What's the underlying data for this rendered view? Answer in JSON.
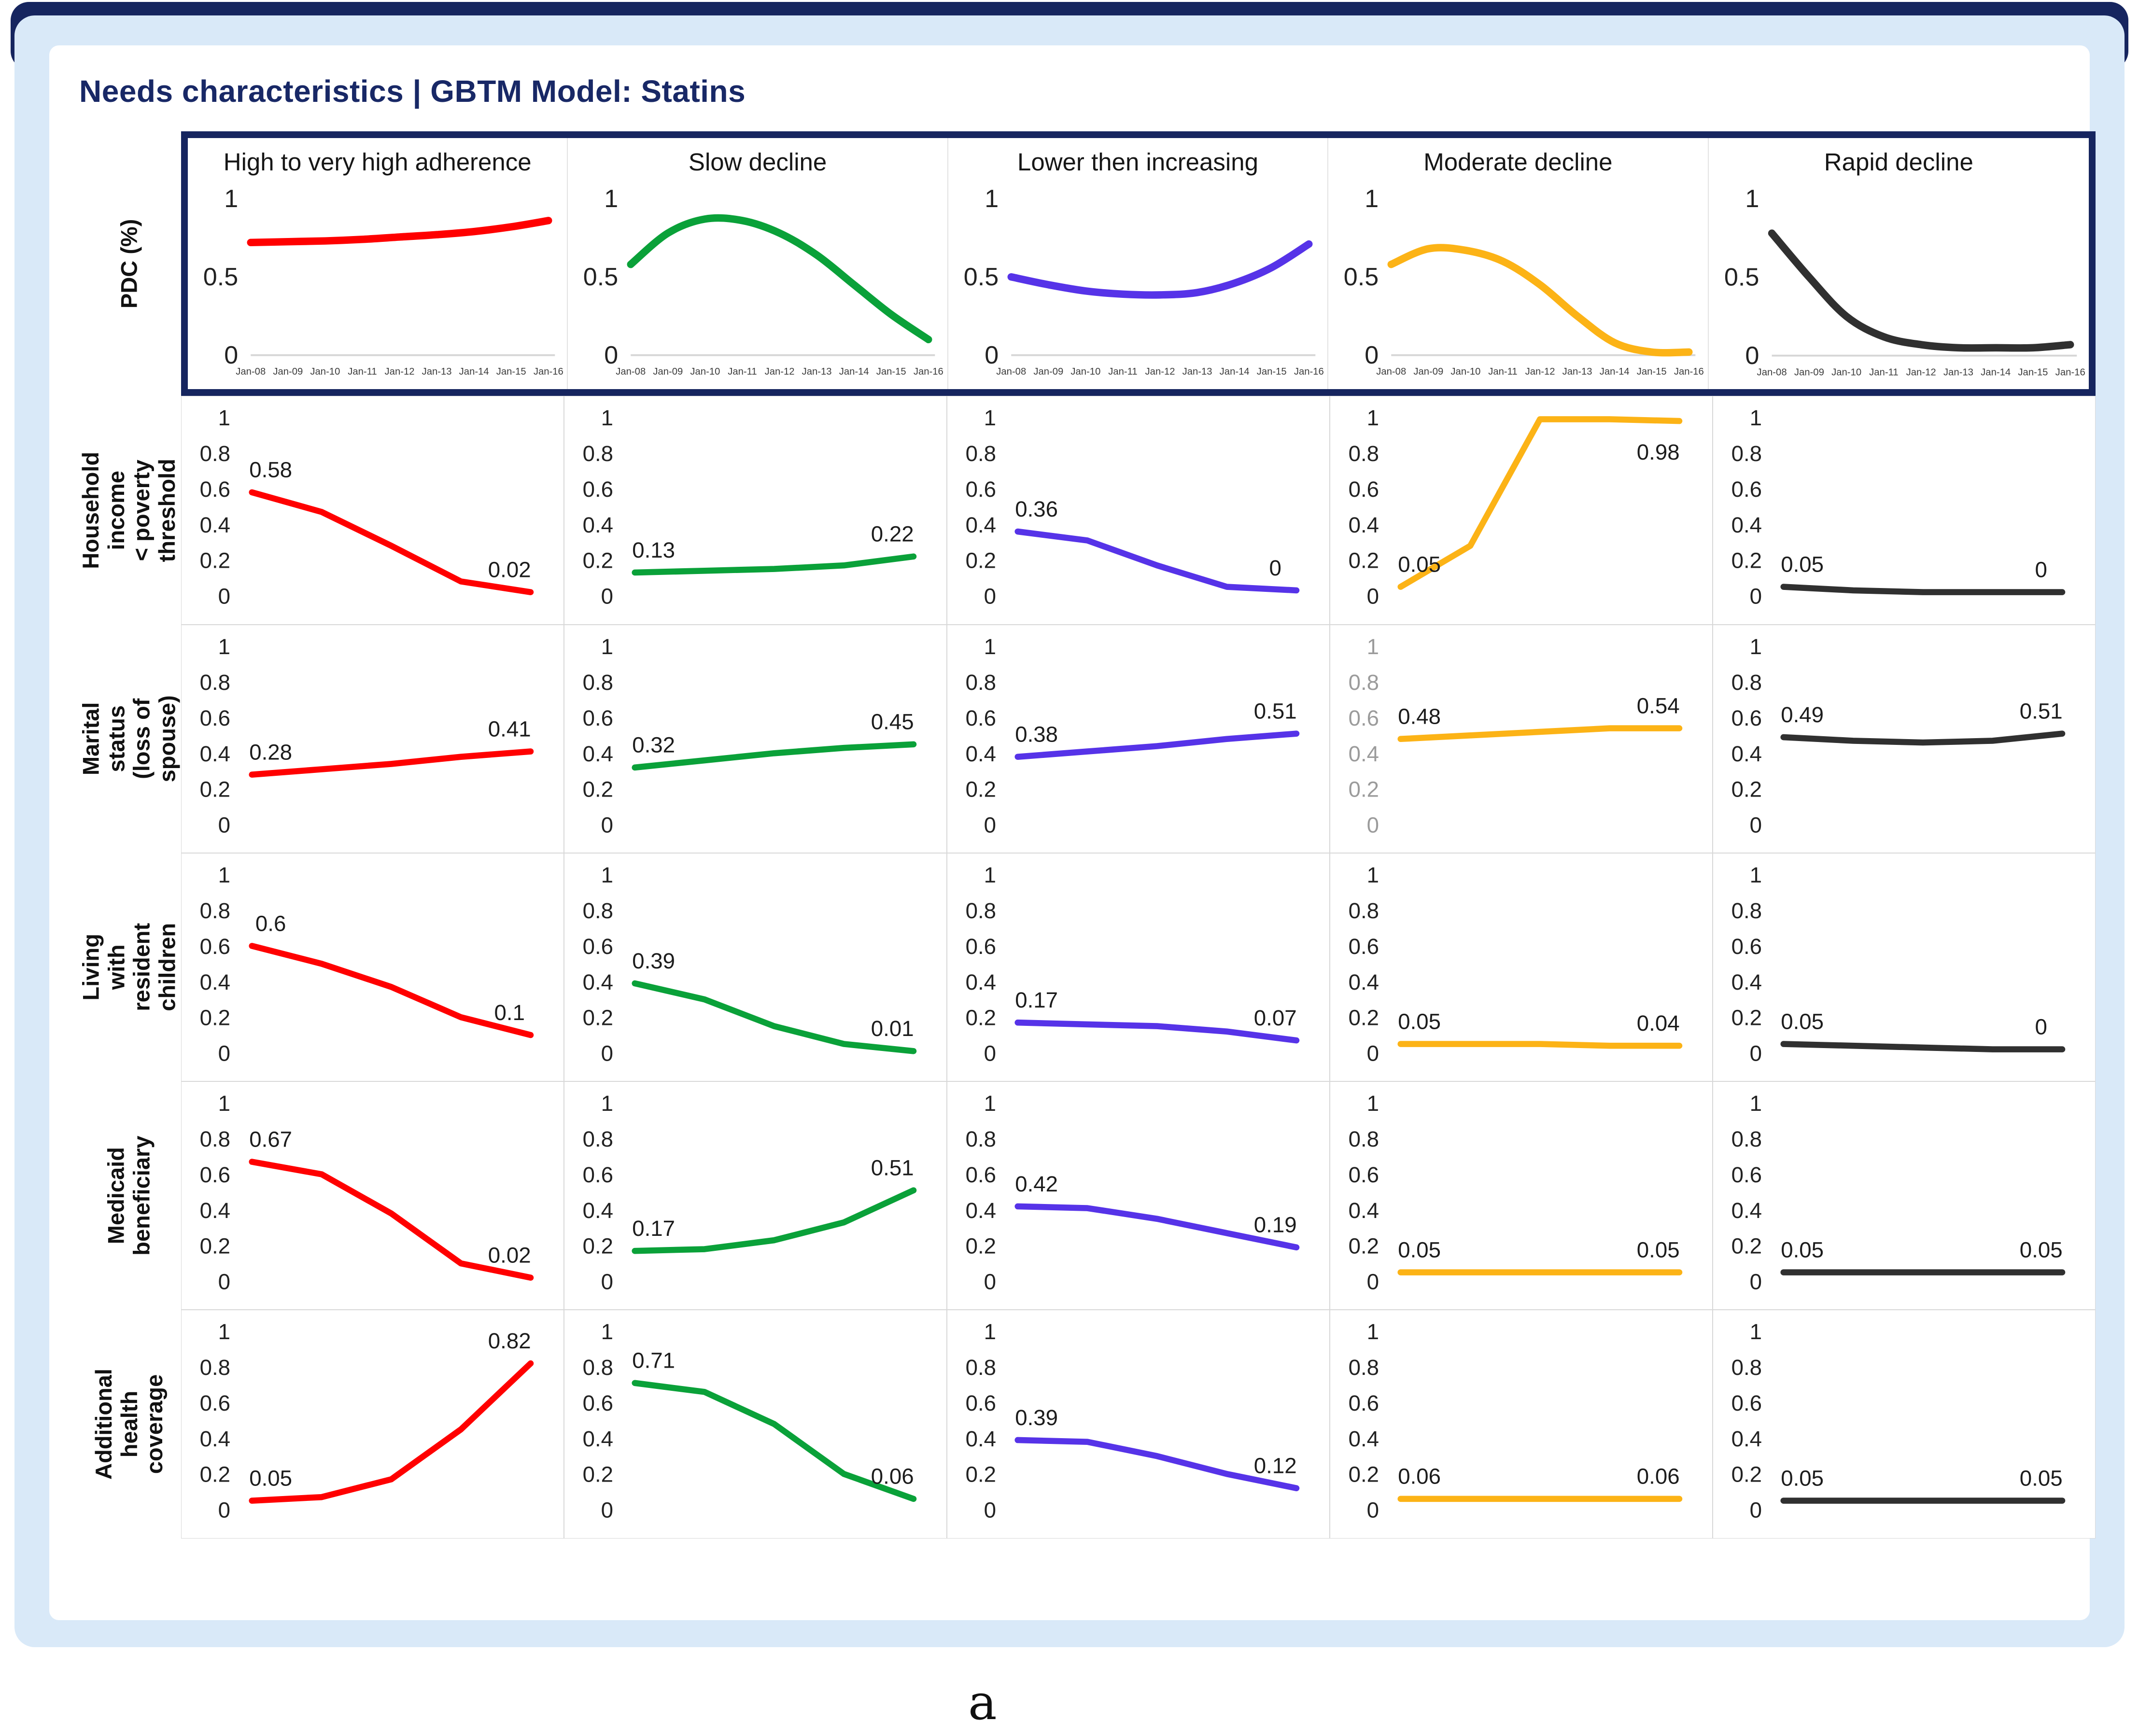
{
  "page": {
    "title": "Needs characteristics | GBTM Model: Statins",
    "figure_label": "a",
    "colors": {
      "navy_border": "#16255f",
      "title_navy": "#182866",
      "card_blue": "#d9e9f8",
      "tick_black": "#222222",
      "tick_gray": "#9b9b9b",
      "baseline_gray": "#d6d6d6",
      "red": "#ff0000",
      "green": "#0aa139",
      "purple": "#5633e8",
      "orange": "#fcb316",
      "black": "#303030"
    }
  },
  "chart_data": {
    "type": "line",
    "title": "Needs characteristics | GBTM Model: Statins",
    "x_labels": [
      "Jan-08",
      "Jan-09",
      "Jan-10",
      "Jan-11",
      "Jan-12",
      "Jan-13",
      "Jan-14",
      "Jan-15",
      "Jan-16"
    ],
    "pdc_axis_ticks": [
      "1",
      "0.5",
      "0"
    ],
    "row_axis_ticks": [
      "1",
      "0.8",
      "0.6",
      "0.4",
      "0.2",
      "0"
    ],
    "ylim": [
      0,
      1
    ],
    "grid": "off",
    "columns": [
      {
        "id": "high",
        "label": "High to very high adherence",
        "color": "#ff0000"
      },
      {
        "id": "slow",
        "label": "Slow decline",
        "color": "#0aa139"
      },
      {
        "id": "lower",
        "label": "Lower then increasing",
        "color": "#5633e8"
      },
      {
        "id": "moderate",
        "label": "Moderate decline",
        "color": "#fcb316"
      },
      {
        "id": "rapid",
        "label": "Rapid decline",
        "color": "#303030"
      }
    ],
    "pdc_row": {
      "label": "PDC (%)",
      "yticks": [
        1,
        0.5,
        0
      ],
      "series": [
        {
          "column": "high",
          "values": [
            0.72,
            0.725,
            0.73,
            0.74,
            0.755,
            0.77,
            0.79,
            0.82,
            0.86
          ]
        },
        {
          "column": "slow",
          "values": [
            0.58,
            0.78,
            0.87,
            0.86,
            0.78,
            0.64,
            0.45,
            0.26,
            0.1
          ]
        },
        {
          "column": "lower",
          "values": [
            0.5,
            0.45,
            0.41,
            0.39,
            0.385,
            0.4,
            0.46,
            0.56,
            0.71
          ]
        },
        {
          "column": "moderate",
          "values": [
            0.58,
            0.68,
            0.67,
            0.6,
            0.45,
            0.25,
            0.08,
            0.02,
            0.02
          ]
        },
        {
          "column": "rapid",
          "values": [
            0.78,
            0.5,
            0.25,
            0.12,
            0.07,
            0.05,
            0.05,
            0.05,
            0.07
          ]
        }
      ]
    },
    "rows": [
      {
        "id": "household_income",
        "label": "Household income\n< poverty threshold",
        "cells": [
          {
            "values": [
              0.58,
              0.47,
              0.28,
              0.08,
              0.02
            ],
            "label_start": "0.58",
            "label_end": "0.02"
          },
          {
            "values": [
              0.13,
              0.14,
              0.15,
              0.17,
              0.22
            ],
            "label_start": "0.13",
            "label_end": "0.22"
          },
          {
            "values": [
              0.36,
              0.31,
              0.17,
              0.05,
              0.03
            ],
            "label_start": "0.36",
            "label_end": "0"
          },
          {
            "values": [
              0.05,
              0.28,
              0.99,
              0.99,
              0.98
            ],
            "label_start": "0.05",
            "label_end": "0.98",
            "label_end_below": true
          },
          {
            "values": [
              0.05,
              0.03,
              0.02,
              0.02,
              0.02
            ],
            "label_start": "0.05",
            "label_end": "0"
          }
        ]
      },
      {
        "id": "marital_status",
        "label": "Marital status\n(loss of spouse)",
        "cells": [
          {
            "values": [
              0.28,
              0.31,
              0.34,
              0.38,
              0.41
            ],
            "label_start": "0.28",
            "label_end": "0.41"
          },
          {
            "values": [
              0.32,
              0.36,
              0.4,
              0.43,
              0.45
            ],
            "label_start": "0.32",
            "label_end": "0.45"
          },
          {
            "values": [
              0.38,
              0.41,
              0.44,
              0.48,
              0.51
            ],
            "label_start": "0.38",
            "label_end": "0.51"
          },
          {
            "values": [
              0.48,
              0.5,
              0.52,
              0.54,
              0.54
            ],
            "label_start": "0.48",
            "label_end": "0.54",
            "gray_ticks": true
          },
          {
            "values": [
              0.49,
              0.47,
              0.46,
              0.47,
              0.51
            ],
            "label_start": "0.49",
            "label_end": "0.51"
          }
        ]
      },
      {
        "id": "living_children",
        "label": "Living with resident\nchildren",
        "cells": [
          {
            "values": [
              0.6,
              0.5,
              0.37,
              0.2,
              0.1
            ],
            "label_start": "0.6",
            "label_end": "0.1"
          },
          {
            "values": [
              0.39,
              0.3,
              0.15,
              0.05,
              0.01
            ],
            "label_start": "0.39",
            "label_end": "0.01"
          },
          {
            "values": [
              0.17,
              0.16,
              0.15,
              0.12,
              0.07
            ],
            "label_start": "0.17",
            "label_end": "0.07"
          },
          {
            "values": [
              0.05,
              0.05,
              0.05,
              0.04,
              0.04
            ],
            "label_start": "0.05",
            "label_end": "0.04"
          },
          {
            "values": [
              0.05,
              0.04,
              0.03,
              0.02,
              0.02
            ],
            "label_start": "0.05",
            "label_end": "0"
          }
        ]
      },
      {
        "id": "medicaid",
        "label": "Medicaid\nbeneficiary",
        "cells": [
          {
            "values": [
              0.67,
              0.6,
              0.38,
              0.1,
              0.02
            ],
            "label_start": "0.67",
            "label_end": "0.02"
          },
          {
            "values": [
              0.17,
              0.18,
              0.23,
              0.33,
              0.51
            ],
            "label_start": "0.17",
            "label_end": "0.51"
          },
          {
            "values": [
              0.42,
              0.41,
              0.35,
              0.27,
              0.19
            ],
            "label_start": "0.42",
            "label_end": "0.19"
          },
          {
            "values": [
              0.05,
              0.05,
              0.05,
              0.05,
              0.05
            ],
            "label_start": "0.05",
            "label_end": "0.05"
          },
          {
            "values": [
              0.05,
              0.05,
              0.05,
              0.05,
              0.05
            ],
            "label_start": "0.05",
            "label_end": "0.05"
          }
        ]
      },
      {
        "id": "additional_coverage",
        "label": "Additional health\ncoverage",
        "cells": [
          {
            "values": [
              0.05,
              0.07,
              0.17,
              0.45,
              0.82
            ],
            "label_start": "0.05",
            "label_end": "0.82"
          },
          {
            "values": [
              0.71,
              0.66,
              0.48,
              0.2,
              0.06
            ],
            "label_start": "0.71",
            "label_end": "0.06"
          },
          {
            "values": [
              0.39,
              0.38,
              0.3,
              0.2,
              0.12
            ],
            "label_start": "0.39",
            "label_end": "0.12"
          },
          {
            "values": [
              0.06,
              0.06,
              0.06,
              0.06,
              0.06
            ],
            "label_start": "0.06",
            "label_end": "0.06"
          },
          {
            "values": [
              0.05,
              0.05,
              0.05,
              0.05,
              0.05
            ],
            "label_start": "0.05",
            "label_end": "0.05"
          }
        ]
      }
    ]
  }
}
